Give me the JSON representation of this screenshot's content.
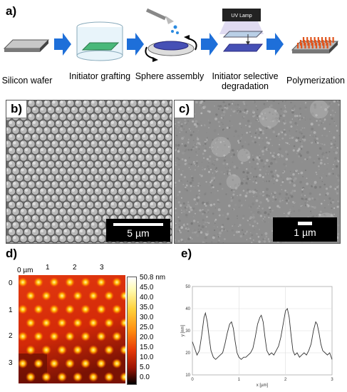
{
  "panels": {
    "a": "a)",
    "b": "b)",
    "c": "c)",
    "d": "d)",
    "e": "e)"
  },
  "steps": [
    {
      "label": "Silicon wafer"
    },
    {
      "label": "Initiator grafting"
    },
    {
      "label": "Sphere assembly"
    },
    {
      "label": "Initiator selective degradation"
    },
    {
      "label": "Polymerization"
    }
  ],
  "uv_lamp_label": "UV Lamp",
  "colors": {
    "arrow": "#1e6fd9",
    "polymer": "#e0541c",
    "spheres": "#4650b5",
    "grafted": "#49b87a"
  },
  "sem_b": {
    "scale_label": "5 µm"
  },
  "sem_c": {
    "scale_label": "1 µm"
  },
  "afm": {
    "unit_label": "0 µm",
    "x_ticks": [
      "1",
      "2",
      "3"
    ],
    "y_ticks": [
      "0",
      "1",
      "2",
      "3"
    ],
    "colorbar": [
      "50.8 nm",
      "45.0",
      "40.0",
      "35.0",
      "30.0",
      "25.0",
      "20.0",
      "15.0",
      "10.0",
      "5.0",
      "0.0"
    ],
    "z_range": [
      0,
      50.8
    ]
  },
  "chart_data": {
    "type": "line",
    "title": "",
    "xlabel": "x [µm]",
    "ylabel": "y [nm]",
    "xlim": [
      0,
      3
    ],
    "ylim": [
      10,
      50
    ],
    "x_ticks": [
      "0",
      "1",
      "2",
      "3"
    ],
    "y_ticks": [
      "10",
      "20",
      "30",
      "40",
      "50"
    ],
    "grid": true,
    "x": [
      0.0,
      0.05,
      0.1,
      0.15,
      0.2,
      0.25,
      0.28,
      0.32,
      0.36,
      0.4,
      0.45,
      0.5,
      0.55,
      0.6,
      0.65,
      0.7,
      0.75,
      0.8,
      0.84,
      0.88,
      0.92,
      0.96,
      1.0,
      1.05,
      1.1,
      1.15,
      1.2,
      1.25,
      1.3,
      1.35,
      1.4,
      1.45,
      1.48,
      1.52,
      1.56,
      1.6,
      1.65,
      1.7,
      1.75,
      1.8,
      1.85,
      1.9,
      1.95,
      2.0,
      2.04,
      2.08,
      2.12,
      2.16,
      2.2,
      2.25,
      2.3,
      2.35,
      2.4,
      2.45,
      2.5,
      2.55,
      2.6,
      2.65,
      2.68,
      2.72,
      2.76,
      2.8,
      2.85,
      2.9,
      2.95,
      3.0
    ],
    "y": [
      25,
      22,
      19,
      21,
      28,
      36,
      38,
      34,
      27,
      21,
      18,
      17,
      18,
      19,
      20,
      24,
      29,
      33,
      34,
      31,
      25,
      20,
      18,
      17,
      18,
      18,
      19,
      20,
      22,
      27,
      33,
      36,
      37,
      34,
      27,
      21,
      19,
      20,
      19,
      21,
      23,
      27,
      33,
      39,
      40,
      36,
      28,
      21,
      19,
      20,
      18,
      19,
      20,
      19,
      21,
      24,
      30,
      34,
      33,
      29,
      24,
      21,
      20,
      19,
      20,
      17
    ]
  }
}
